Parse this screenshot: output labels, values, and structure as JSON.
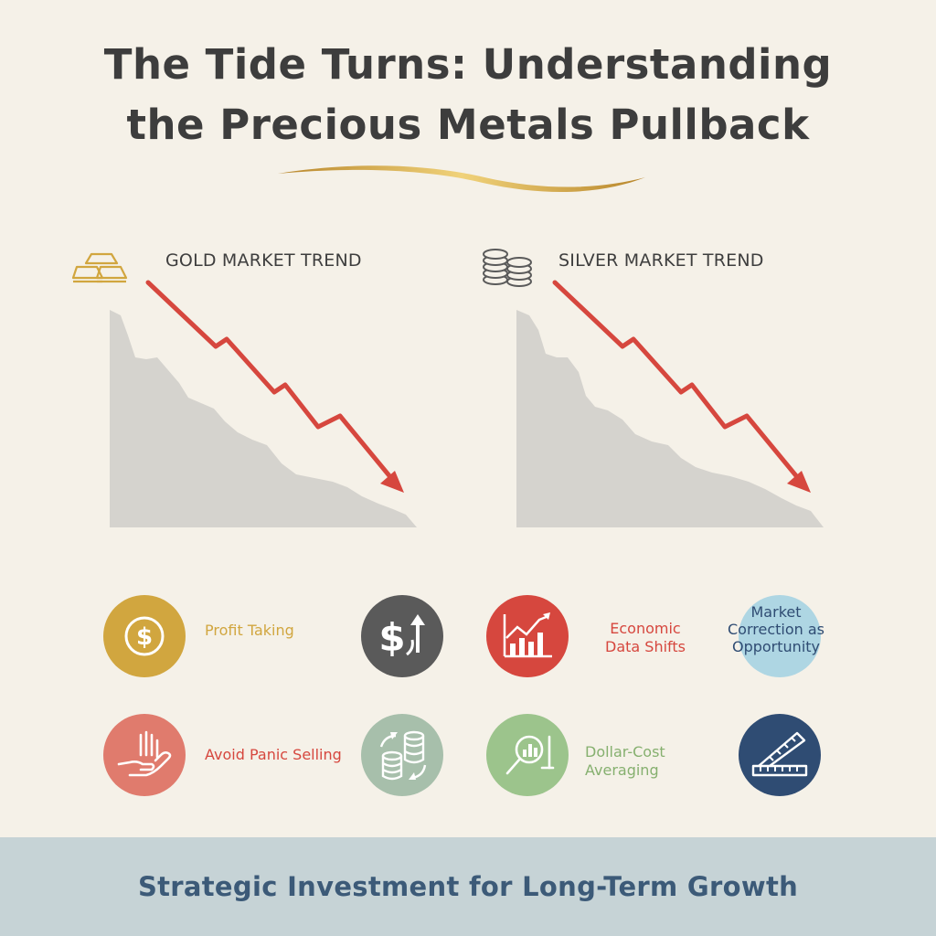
{
  "header": {
    "title_line1": "The Tide Turns: Understanding",
    "title_line2": "the Precious Metals Pullback"
  },
  "colors": {
    "gold": "#d1a63f",
    "silver_gray": "#5a5a5a",
    "red": "#d6473e",
    "light_blue": "#aed6e3",
    "salmon": "#e07b6d",
    "sage": "#a7bfab",
    "green": "#9cc48c",
    "navy": "#2f4c73",
    "area_fill": "#d5d3ce",
    "footer_bg": "#c6d3d6",
    "footer_text": "#3c5a78"
  },
  "gold_panel": {
    "icon": "gold-bars-icon",
    "label": "GOLD MARKET TREND"
  },
  "silver_panel": {
    "icon": "coin-stacks-icon",
    "label": "SILVER MARKET TREND"
  },
  "factors": {
    "row1": [
      {
        "icon": "dollar-coin-icon",
        "label": "Profit Taking"
      },
      {
        "icon": "dollar-flow-icon",
        "label": ""
      },
      {
        "icon": "growth-chart-icon",
        "label_line1": "Economic",
        "label_line2": "Data Shifts"
      },
      {
        "icon": "",
        "label_line1": "Market",
        "label_line2": "Correction as",
        "label_line3": "Opportunity"
      }
    ],
    "row2": [
      {
        "icon": "hand-stop-icon",
        "label": "Avoid Panic Selling"
      },
      {
        "icon": "coins-exchange-icon",
        "label": ""
      },
      {
        "icon": "magnifier-chart-icon",
        "label_line1": "Dollar-Cost",
        "label_line2": "Averaging"
      },
      {
        "icon": "ruler-icon",
        "label": ""
      }
    ]
  },
  "footer": {
    "text": "Strategic Investment for Long-Term Growth"
  }
}
